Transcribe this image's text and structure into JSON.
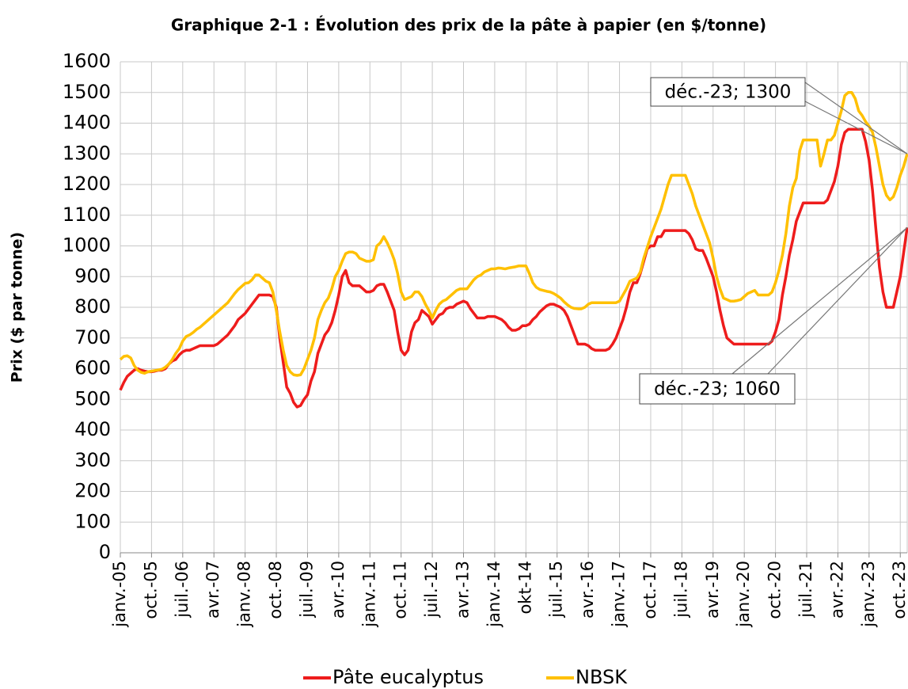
{
  "chart_data": {
    "type": "line",
    "title": "Graphique 2-1 : Évolution des prix de la pâte à papier (en $/tonne)",
    "y_label": "Prix ($ par tonne)",
    "categories": [
      "janv.-05",
      null,
      null,
      null,
      null,
      null,
      null,
      null,
      null,
      "oct.-05",
      null,
      null,
      null,
      null,
      null,
      null,
      null,
      null,
      "juil.-06",
      null,
      null,
      null,
      null,
      null,
      null,
      null,
      null,
      "avr.-07",
      null,
      null,
      null,
      null,
      null,
      null,
      null,
      null,
      "janv.-08",
      null,
      null,
      null,
      null,
      null,
      null,
      null,
      null,
      "oct.-08",
      null,
      null,
      null,
      null,
      null,
      null,
      null,
      null,
      "juil.-09",
      null,
      null,
      null,
      null,
      null,
      null,
      null,
      null,
      "avr.-10",
      null,
      null,
      null,
      null,
      null,
      null,
      null,
      null,
      "janv.-11",
      null,
      null,
      null,
      null,
      null,
      null,
      null,
      null,
      "oct.-11",
      null,
      null,
      null,
      null,
      null,
      null,
      null,
      null,
      "juil.-12",
      null,
      null,
      null,
      null,
      null,
      null,
      null,
      null,
      "avr.-13",
      null,
      null,
      null,
      null,
      null,
      null,
      null,
      null,
      "janv.-14",
      null,
      null,
      null,
      null,
      null,
      null,
      null,
      null,
      "okt-14",
      null,
      null,
      null,
      null,
      null,
      null,
      null,
      null,
      "juil.-15",
      null,
      null,
      null,
      null,
      null,
      null,
      null,
      null,
      "avr.-16",
      null,
      null,
      null,
      null,
      null,
      null,
      null,
      null,
      "janv.-17",
      null,
      null,
      null,
      null,
      null,
      null,
      null,
      null,
      "oct.-17",
      null,
      null,
      null,
      null,
      null,
      null,
      null,
      null,
      "juil.-18",
      null,
      null,
      null,
      null,
      null,
      null,
      null,
      null,
      "avr.-19",
      null,
      null,
      null,
      null,
      null,
      null,
      null,
      null,
      "janv.-20",
      null,
      null,
      null,
      null,
      null,
      null,
      null,
      null,
      "oct.-20",
      null,
      null,
      null,
      null,
      null,
      null,
      null,
      null,
      "juil.-21",
      null,
      null,
      null,
      null,
      null,
      null,
      null,
      null,
      "avr.-22",
      null,
      null,
      null,
      null,
      null,
      null,
      null,
      null,
      "janv.-23",
      null,
      null,
      null,
      null,
      null,
      null,
      null,
      null,
      "oct.-23",
      null,
      null
    ],
    "series": [
      {
        "name": "Pâte eucalyptus",
        "color": "#ee1c1c",
        "values": [
          530,
          555,
          575,
          585,
          595,
          600,
          595,
          592,
          590,
          590,
          592,
          595,
          595,
          600,
          615,
          625,
          630,
          645,
          655,
          660,
          660,
          665,
          670,
          675,
          675,
          675,
          675,
          675,
          680,
          690,
          700,
          710,
          725,
          740,
          760,
          770,
          780,
          795,
          810,
          825,
          840,
          840,
          840,
          840,
          835,
          800,
          700,
          620,
          540,
          520,
          490,
          475,
          480,
          500,
          515,
          560,
          590,
          650,
          680,
          710,
          725,
          750,
          790,
          840,
          900,
          920,
          880,
          870,
          870,
          870,
          860,
          850,
          850,
          855,
          870,
          875,
          875,
          850,
          820,
          790,
          720,
          660,
          645,
          660,
          720,
          750,
          760,
          790,
          780,
          770,
          745,
          760,
          775,
          780,
          795,
          800,
          800,
          810,
          815,
          820,
          815,
          795,
          780,
          765,
          765,
          765,
          770,
          770,
          770,
          765,
          760,
          750,
          735,
          725,
          725,
          730,
          740,
          740,
          745,
          760,
          770,
          785,
          795,
          805,
          810,
          810,
          805,
          800,
          790,
          770,
          740,
          710,
          680,
          680,
          680,
          675,
          665,
          660,
          660,
          660,
          660,
          665,
          680,
          700,
          730,
          760,
          800,
          850,
          880,
          880,
          910,
          950,
          990,
          1000,
          1000,
          1030,
          1030,
          1050,
          1050,
          1050,
          1050,
          1050,
          1050,
          1050,
          1040,
          1020,
          990,
          985,
          985,
          960,
          930,
          900,
          850,
          790,
          740,
          700,
          690,
          680,
          680,
          680,
          680,
          680,
          680,
          680,
          680,
          680,
          680,
          680,
          690,
          720,
          760,
          840,
          900,
          970,
          1020,
          1080,
          1110,
          1140,
          1140,
          1140,
          1140,
          1140,
          1140,
          1140,
          1150,
          1180,
          1210,
          1260,
          1330,
          1370,
          1380,
          1380,
          1380,
          1380,
          1380,
          1340,
          1280,
          1180,
          1050,
          930,
          850,
          800,
          800,
          800,
          850,
          900,
          980,
          1060
        ]
      },
      {
        "name": "NBSK",
        "color": "#ffc000",
        "values": [
          630,
          640,
          642,
          635,
          610,
          595,
          588,
          585,
          590,
          592,
          594,
          596,
          598,
          605,
          615,
          630,
          650,
          665,
          690,
          705,
          710,
          718,
          728,
          735,
          745,
          755,
          765,
          775,
          785,
          795,
          805,
          815,
          830,
          845,
          858,
          868,
          878,
          880,
          890,
          905,
          905,
          895,
          885,
          880,
          850,
          790,
          720,
          660,
          610,
          590,
          580,
          578,
          580,
          600,
          630,
          660,
          700,
          760,
          790,
          815,
          830,
          860,
          900,
          920,
          950,
          975,
          980,
          980,
          975,
          960,
          955,
          950,
          950,
          955,
          1000,
          1010,
          1030,
          1010,
          985,
          955,
          910,
          850,
          825,
          830,
          835,
          850,
          850,
          835,
          810,
          790,
          765,
          790,
          810,
          820,
          825,
          835,
          845,
          855,
          860,
          860,
          860,
          875,
          890,
          900,
          905,
          915,
          920,
          925,
          925,
          928,
          927,
          925,
          928,
          930,
          932,
          935,
          935,
          935,
          910,
          880,
          865,
          858,
          855,
          852,
          850,
          845,
          838,
          830,
          818,
          808,
          800,
          796,
          795,
          795,
          800,
          810,
          815,
          815,
          815,
          815,
          815,
          815,
          815,
          815,
          820,
          840,
          860,
          885,
          890,
          895,
          915,
          960,
          995,
          1030,
          1060,
          1090,
          1120,
          1160,
          1200,
          1230,
          1230,
          1230,
          1230,
          1230,
          1200,
          1170,
          1130,
          1100,
          1070,
          1040,
          1010,
          960,
          900,
          860,
          830,
          825,
          820,
          820,
          822,
          825,
          835,
          845,
          850,
          855,
          840,
          840,
          840,
          840,
          850,
          880,
          920,
          970,
          1040,
          1130,
          1190,
          1220,
          1310,
          1345,
          1345,
          1345,
          1345,
          1345,
          1260,
          1300,
          1345,
          1345,
          1360,
          1400,
          1440,
          1490,
          1500,
          1500,
          1480,
          1440,
          1425,
          1405,
          1390,
          1370,
          1320,
          1260,
          1200,
          1165,
          1150,
          1160,
          1190,
          1230,
          1260,
          1300
        ]
      }
    ],
    "annotations": [
      {
        "text": "déc.-23; 1300"
      },
      {
        "text": "déc.-23; 1060"
      }
    ],
    "ylim": [
      0,
      1600
    ],
    "yticks": [
      0,
      100,
      200,
      300,
      400,
      500,
      600,
      700,
      800,
      900,
      1000,
      1100,
      1200,
      1300,
      1400,
      1500,
      1600
    ],
    "grid": true,
    "legend": "bottom"
  }
}
